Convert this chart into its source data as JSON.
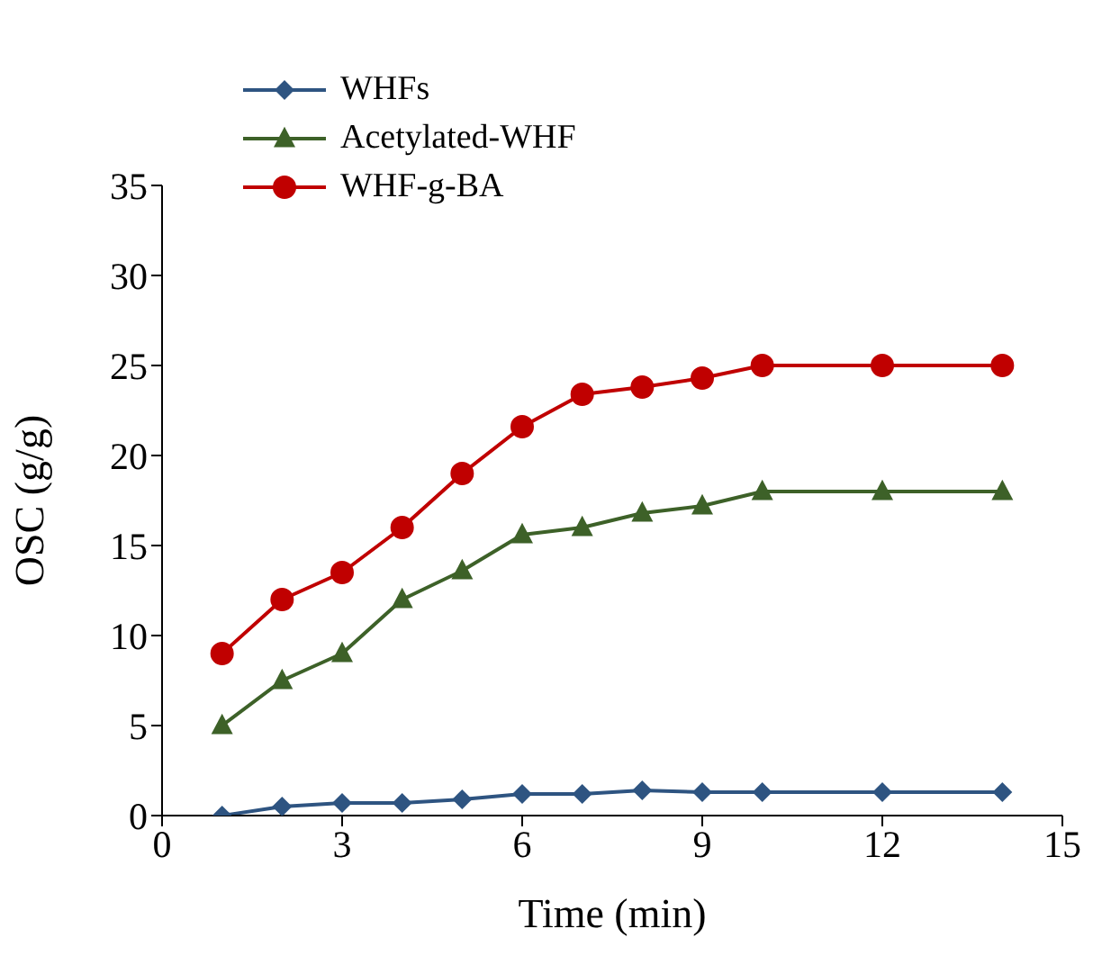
{
  "chart_data": {
    "type": "line",
    "xlabel": "Time (min)",
    "ylabel": "OSC (g/g)",
    "x": [
      1,
      2,
      3,
      4,
      5,
      6,
      7,
      8,
      9,
      10,
      12,
      14
    ],
    "series": [
      {
        "name": "WHFs",
        "color": "#2e5481",
        "marker": "diamond",
        "values": [
          0,
          0.5,
          0.7,
          0.7,
          0.9,
          1.2,
          1.2,
          1.4,
          1.3,
          1.3,
          1.3,
          1.3
        ]
      },
      {
        "name": "Acetylated-WHF",
        "color": "#3d6128",
        "marker": "triangle",
        "values": [
          5,
          7.5,
          9,
          12,
          13.6,
          15.6,
          16,
          16.8,
          17.2,
          18,
          18,
          18
        ]
      },
      {
        "name": "WHF-g-BA",
        "color": "#c00000",
        "marker": "circle",
        "values": [
          9,
          12,
          13.5,
          16,
          19,
          21.6,
          23.4,
          23.8,
          24.3,
          25,
          25,
          25
        ]
      }
    ],
    "xlim": [
      0,
      15
    ],
    "xticks": [
      0,
      3,
      6,
      9,
      12,
      15
    ],
    "ylim": [
      0,
      35
    ],
    "yticks": [
      0,
      5,
      10,
      15,
      20,
      25,
      30,
      35
    ],
    "grid": false,
    "legend": "top left",
    "line_style": "solid"
  }
}
